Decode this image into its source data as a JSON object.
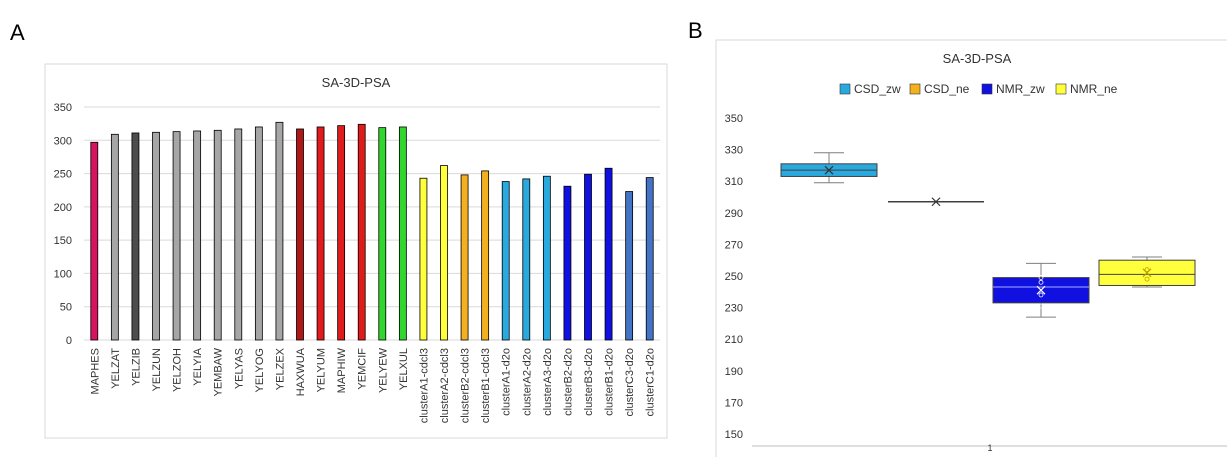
{
  "panels": {
    "a": "A",
    "b": "B"
  },
  "chart_data": [
    {
      "type": "bar",
      "title": "SA-3D-PSA",
      "ylim": [
        0,
        350
      ],
      "yticks": [
        0,
        50,
        100,
        150,
        200,
        250,
        300,
        350
      ],
      "grid": true,
      "categories": [
        "MAPHES",
        "YELZAT",
        "YELZIB",
        "YELZUN",
        "YELZOH",
        "YELYIA",
        "YEMBAW",
        "YELYAS",
        "YELYOG",
        "YELZEX",
        "HAXWUA",
        "YELYUM",
        "MAPHIW",
        "YEMCIF",
        "YELYEW",
        "YELXUL",
        "clusterA1-cdcl3",
        "clusterA2-cdcl3",
        "clusterB2-cdcl3",
        "clusterB1-cdcl3",
        "clusterA1-d2o",
        "clusterA2-d2o",
        "clusterA3-d2o",
        "clusterB2-d2o",
        "clusterB3-d2o",
        "clusterB1-d2o",
        "clusterC3-d2o",
        "clusterC1-d2o"
      ],
      "values": [
        297,
        309,
        311,
        312,
        313,
        314,
        315,
        317,
        320,
        327,
        317,
        320,
        322,
        324,
        319,
        320,
        243,
        262,
        248,
        254,
        238,
        242,
        246,
        231,
        249,
        258,
        223,
        244
      ],
      "colors": [
        "#d6135f",
        "#a6a6a6",
        "#4d4d4d",
        "#a6a6a6",
        "#a6a6a6",
        "#a6a6a6",
        "#a6a6a6",
        "#a6a6a6",
        "#a6a6a6",
        "#a6a6a6",
        "#b01818",
        "#e01b1b",
        "#e01b1b",
        "#e01b1b",
        "#33d62e",
        "#33d62e",
        "#ffff3c",
        "#ffff3c",
        "#f3b11f",
        "#f3b11f",
        "#2aa9de",
        "#2aa9de",
        "#2aa9de",
        "#1010e0",
        "#1010e0",
        "#1010e0",
        "#4472c4",
        "#4472c4"
      ]
    },
    {
      "type": "box",
      "title": "SA-3D-PSA",
      "ylim": [
        150,
        350
      ],
      "yticks": [
        150,
        170,
        190,
        210,
        230,
        250,
        270,
        290,
        310,
        330,
        350
      ],
      "grid": false,
      "xcategory": "1",
      "legend_position": "top",
      "series": [
        {
          "name": "CSD_zw",
          "color": "#2aa9de",
          "min": 309,
          "q1": 313,
          "median": 317,
          "q3": 321,
          "max": 328,
          "mean": 317,
          "points": []
        },
        {
          "name": "CSD_ne",
          "color": "#f3b11f",
          "min": 297,
          "q1": 297,
          "median": 297,
          "q3": 297,
          "max": 297,
          "mean": 297,
          "points": []
        },
        {
          "name": "NMR_zw",
          "color": "#1010e0",
          "min": 224,
          "q1": 233,
          "median": 243,
          "q3": 249,
          "max": 258,
          "mean": 241,
          "points": [
            231,
            238,
            246,
            249
          ]
        },
        {
          "name": "NMR_ne",
          "color": "#ffff3c",
          "min": 243,
          "q1": 244,
          "median": 251,
          "q3": 260,
          "max": 262,
          "mean": 252,
          "points": [
            248,
            254
          ]
        }
      ]
    }
  ]
}
